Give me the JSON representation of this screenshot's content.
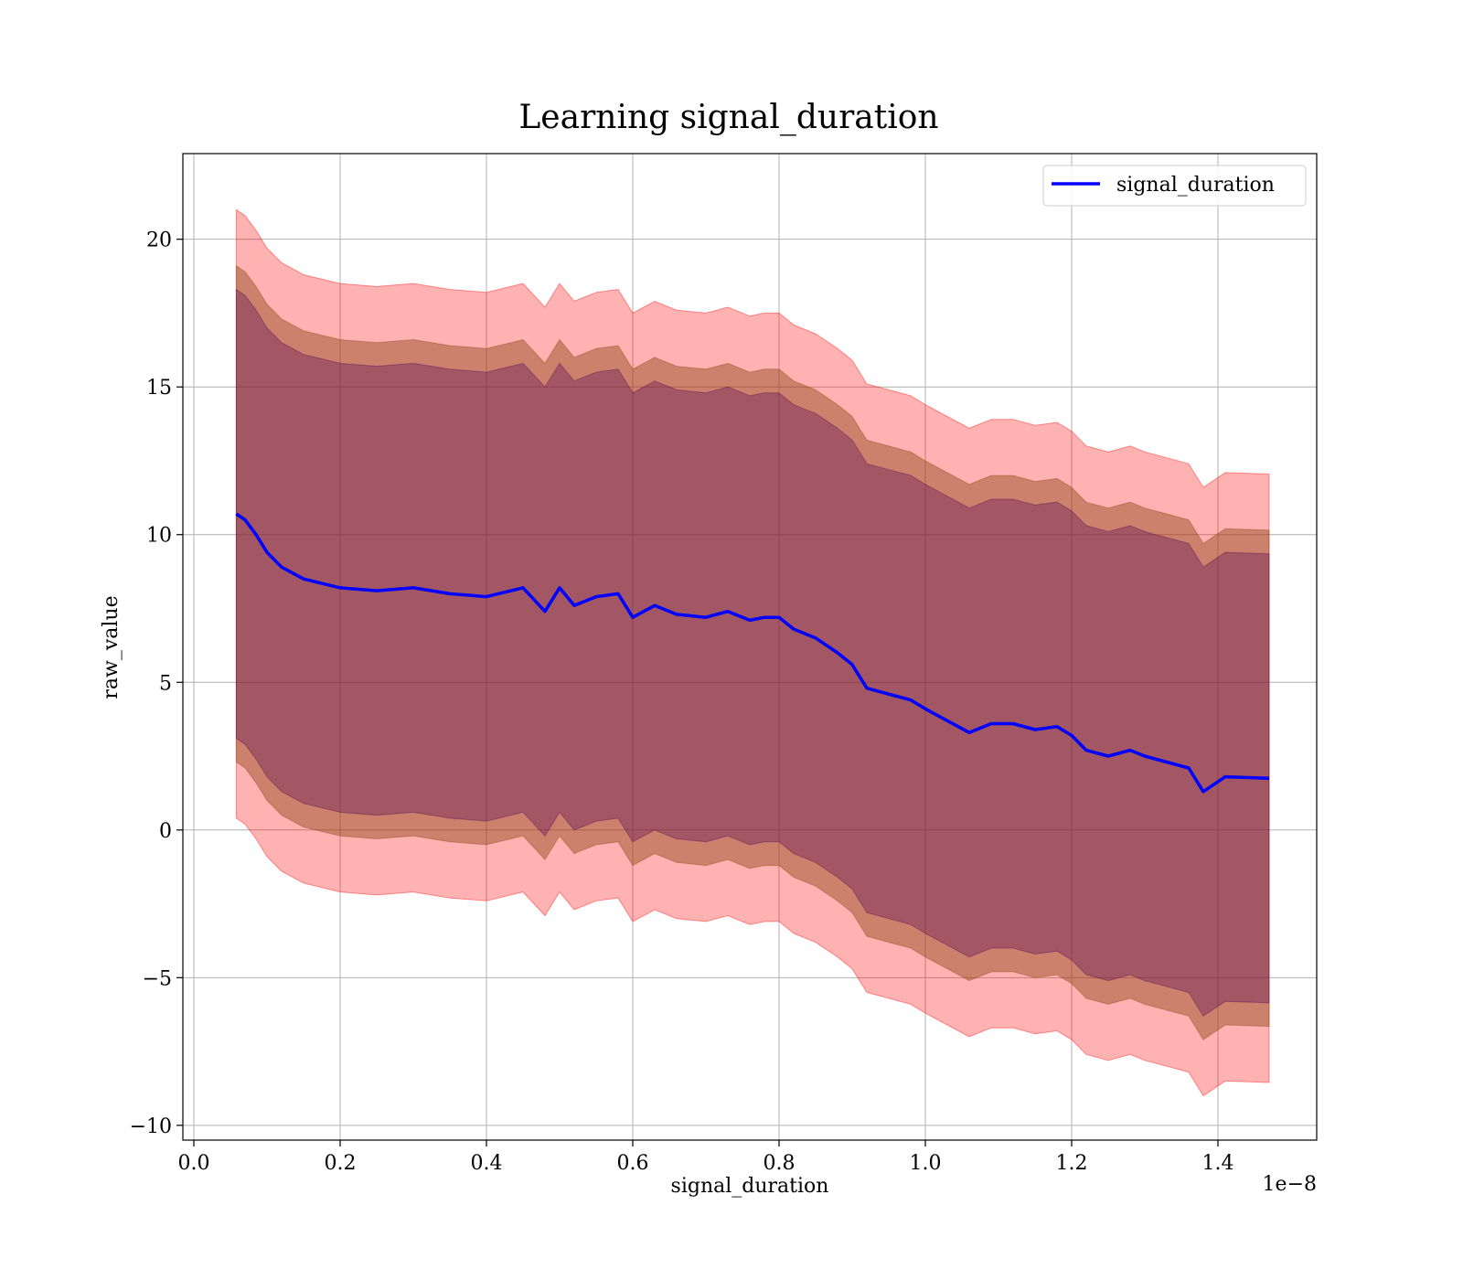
{
  "chart_data": {
    "type": "line",
    "title": "Learning signal_duration",
    "xlabel": "signal_duration",
    "ylabel": "raw_value",
    "x_offset_text": "1e−8",
    "xlim": [
      -0.015,
      1.535
    ],
    "ylim": [
      -10.5,
      22.9
    ],
    "xticks": [
      0.0,
      0.2,
      0.4,
      0.6,
      0.8,
      1.0,
      1.2,
      1.4
    ],
    "xtick_labels": [
      "0.0",
      "0.2",
      "0.4",
      "0.6",
      "0.8",
      "1.0",
      "1.2",
      "1.4"
    ],
    "yticks": [
      -10,
      -5,
      0,
      5,
      10,
      15,
      20
    ],
    "ytick_labels": [
      "−10",
      "−5",
      "0",
      "5",
      "10",
      "15",
      "20"
    ],
    "grid": true,
    "legend_position": "top-right",
    "series": [
      {
        "name": "signal_duration",
        "color": "#0000ff",
        "x": [
          0.058,
          0.07,
          0.085,
          0.1,
          0.12,
          0.15,
          0.2,
          0.25,
          0.3,
          0.35,
          0.4,
          0.45,
          0.48,
          0.5,
          0.52,
          0.55,
          0.58,
          0.6,
          0.63,
          0.66,
          0.7,
          0.73,
          0.76,
          0.78,
          0.8,
          0.82,
          0.85,
          0.88,
          0.9,
          0.92,
          0.95,
          0.98,
          1.0,
          1.03,
          1.06,
          1.09,
          1.12,
          1.15,
          1.18,
          1.2,
          1.22,
          1.25,
          1.28,
          1.3,
          1.33,
          1.36,
          1.38,
          1.41,
          1.47
        ],
        "y": [
          10.7,
          10.5,
          10.0,
          9.4,
          8.9,
          8.5,
          8.2,
          8.1,
          8.2,
          8.0,
          7.9,
          8.2,
          7.4,
          8.2,
          7.6,
          7.9,
          8.0,
          7.2,
          7.6,
          7.3,
          7.2,
          7.4,
          7.1,
          7.2,
          7.2,
          6.8,
          6.5,
          6.0,
          5.6,
          4.8,
          4.6,
          4.4,
          4.1,
          3.7,
          3.3,
          3.6,
          3.6,
          3.4,
          3.5,
          3.2,
          2.7,
          2.5,
          2.7,
          2.5,
          2.3,
          2.1,
          1.3,
          1.8,
          1.75
        ]
      }
    ],
    "bands": [
      {
        "color": "#ff0000",
        "opacity": 0.3,
        "offset": 10.3
      },
      {
        "color": "#8b4513",
        "opacity": 0.45,
        "offset": 8.4
      },
      {
        "color": "#5a0a5a",
        "opacity": 0.35,
        "offset": 7.6
      }
    ]
  }
}
